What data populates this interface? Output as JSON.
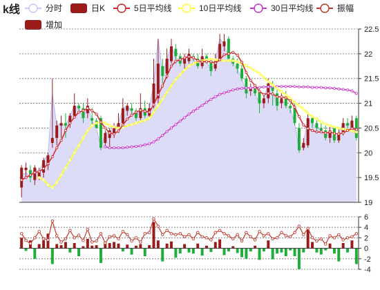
{
  "chart_data": {
    "type": "candlestick",
    "title": "k线",
    "legend": [
      {
        "label": "分时",
        "color": "#c9c9f2",
        "shape": "circle"
      },
      {
        "label": "日K",
        "color": "#9b1b1b",
        "shape": "rect"
      },
      {
        "label": "5日平均线",
        "color": "#d42424",
        "shape": "circle"
      },
      {
        "label": "10日平均线",
        "color": "#ffff33",
        "shape": "circle"
      },
      {
        "label": "30日平均线",
        "color": "#cc33cc",
        "shape": "circle"
      },
      {
        "label": "振幅",
        "color": "#c0392b",
        "shape": "circle"
      },
      {
        "label": "增加",
        "color": "#9b1b1b",
        "shape": "rect"
      }
    ],
    "price_axis": {
      "min": 19,
      "max": 22.5,
      "ticks": [
        "19",
        "19.5",
        "20",
        "20.5",
        "21",
        "21.5",
        "22",
        "22.5"
      ]
    },
    "volume_axis": {
      "min": -4,
      "max": 6,
      "ticks": [
        "-4",
        "-2",
        "0",
        "2",
        "4",
        "6"
      ]
    },
    "colors": {
      "up": "#9b1b1b",
      "down": "#1fae3a",
      "ma5": "#d42424",
      "ma10": "#ffff33",
      "ma30": "#cc33cc",
      "area_fill": "#dcdcf8",
      "area_line": "#b8b8ee",
      "amp": "#c0392b"
    },
    "ohlc": [
      [
        19.3,
        19.7,
        19.1,
        19.75
      ],
      [
        19.65,
        19.7,
        19.5,
        19.8
      ],
      [
        19.65,
        19.5,
        19.4,
        19.75
      ],
      [
        19.45,
        19.7,
        19.35,
        19.75
      ],
      [
        19.5,
        19.6,
        19.45,
        19.7
      ],
      [
        19.6,
        19.85,
        19.5,
        19.9
      ],
      [
        19.75,
        19.95,
        19.65,
        20.0
      ],
      [
        20.2,
        20.3,
        20.1,
        21.5
      ],
      [
        20.3,
        20.55,
        20.15,
        20.65
      ],
      [
        20.55,
        20.6,
        20.3,
        20.75
      ],
      [
        20.6,
        20.55,
        20.3,
        20.8
      ],
      [
        20.6,
        20.75,
        20.5,
        20.8
      ],
      [
        20.75,
        20.95,
        20.7,
        21.2
      ],
      [
        20.95,
        20.9,
        20.85,
        21.0
      ],
      [
        20.9,
        20.7,
        20.6,
        21.0
      ],
      [
        20.8,
        20.95,
        20.7,
        21.1
      ],
      [
        20.7,
        20.65,
        20.55,
        20.9
      ],
      [
        20.65,
        20.5,
        20.5,
        20.7
      ],
      [
        20.7,
        20.1,
        20.05,
        20.75
      ],
      [
        20.2,
        20.4,
        20.15,
        20.45
      ],
      [
        20.3,
        20.45,
        20.1,
        20.5
      ],
      [
        20.4,
        20.5,
        20.3,
        20.6
      ],
      [
        20.5,
        20.6,
        20.4,
        20.8
      ],
      [
        20.6,
        20.9,
        20.5,
        21.1
      ],
      [
        20.85,
        20.95,
        20.75,
        21.0
      ],
      [
        20.9,
        20.85,
        20.75,
        21.0
      ],
      [
        20.85,
        20.7,
        20.65,
        20.9
      ],
      [
        20.7,
        20.9,
        20.6,
        21.2
      ],
      [
        20.9,
        20.75,
        20.7,
        21.05
      ],
      [
        20.75,
        20.9,
        20.7,
        21.0
      ],
      [
        21.0,
        21.4,
        20.9,
        21.9
      ],
      [
        21.1,
        21.8,
        21.0,
        22.3
      ],
      [
        21.75,
        21.55,
        21.4,
        21.9
      ],
      [
        21.6,
        21.9,
        21.5,
        22.1
      ],
      [
        21.85,
        22.15,
        21.8,
        22.3
      ],
      [
        22.1,
        21.95,
        21.8,
        22.2
      ],
      [
        21.95,
        21.8,
        21.75,
        22.0
      ],
      [
        21.8,
        21.9,
        21.7,
        22.0
      ],
      [
        21.85,
        22.0,
        21.8,
        22.1
      ],
      [
        21.95,
        21.9,
        21.85,
        22.0
      ],
      [
        21.9,
        21.75,
        21.7,
        22.0
      ],
      [
        21.75,
        21.95,
        21.7,
        22.1
      ],
      [
        21.95,
        21.85,
        21.8,
        22.0
      ],
      [
        21.85,
        21.65,
        21.55,
        21.9
      ],
      [
        21.7,
        21.85,
        21.65,
        22.0
      ],
      [
        21.9,
        22.2,
        21.85,
        22.4
      ],
      [
        22.15,
        22.25,
        22.05,
        22.4
      ],
      [
        22.3,
        21.9,
        21.85,
        22.35
      ],
      [
        21.9,
        21.8,
        21.75,
        21.95
      ],
      [
        21.8,
        21.7,
        21.6,
        21.9
      ],
      [
        21.7,
        21.5,
        21.45,
        21.8
      ],
      [
        21.5,
        21.2,
        21.1,
        21.55
      ],
      [
        21.25,
        21.3,
        21.15,
        21.4
      ],
      [
        21.3,
        21.2,
        21.15,
        21.35
      ],
      [
        21.25,
        21.0,
        20.8,
        21.3
      ],
      [
        21.0,
        21.1,
        20.9,
        21.2
      ],
      [
        21.1,
        21.4,
        21.0,
        21.5
      ],
      [
        21.35,
        21.25,
        20.95,
        21.45
      ],
      [
        21.2,
        20.95,
        20.85,
        21.3
      ],
      [
        21.0,
        21.1,
        20.9,
        21.2
      ],
      [
        21.1,
        20.95,
        20.9,
        21.25
      ],
      [
        20.95,
        20.9,
        20.8,
        21.0
      ],
      [
        20.9,
        20.6,
        20.55,
        21.0
      ],
      [
        20.5,
        20.05,
        20.0,
        20.6
      ],
      [
        20.1,
        20.2,
        20.05,
        20.3
      ],
      [
        20.15,
        20.7,
        20.1,
        20.8
      ],
      [
        20.7,
        20.6,
        20.5,
        20.75
      ],
      [
        20.6,
        20.5,
        20.45,
        20.7
      ],
      [
        20.5,
        20.45,
        20.4,
        20.6
      ],
      [
        20.45,
        20.3,
        20.25,
        20.55
      ],
      [
        20.3,
        20.45,
        20.2,
        20.55
      ],
      [
        20.5,
        20.25,
        20.2,
        20.55
      ],
      [
        20.25,
        20.4,
        20.2,
        20.5
      ],
      [
        20.4,
        20.6,
        20.35,
        20.7
      ],
      [
        20.6,
        20.55,
        20.45,
        20.7
      ],
      [
        20.5,
        20.65,
        20.45,
        20.75
      ],
      [
        20.7,
        20.3,
        20.25,
        20.75
      ]
    ],
    "ma5": [
      19.45,
      19.5,
      19.55,
      19.6,
      19.62,
      19.68,
      19.78,
      19.92,
      20.1,
      20.25,
      20.45,
      20.6,
      20.72,
      20.82,
      20.85,
      20.9,
      20.85,
      20.78,
      20.62,
      20.5,
      20.4,
      20.38,
      20.44,
      20.56,
      20.68,
      20.76,
      20.82,
      20.86,
      20.84,
      20.82,
      20.97,
      21.17,
      21.35,
      21.55,
      21.75,
      21.85,
      21.88,
      21.92,
      21.94,
      21.92,
      21.86,
      21.84,
      21.84,
      21.84,
      21.81,
      21.88,
      21.98,
      22.0,
      22.03,
      21.97,
      21.83,
      21.62,
      21.46,
      21.36,
      21.24,
      21.18,
      21.2,
      21.19,
      21.13,
      21.13,
      21.11,
      21.05,
      20.92,
      20.73,
      20.56,
      20.49,
      20.45,
      20.42,
      20.42,
      20.4,
      20.42,
      20.39,
      20.38,
      20.4,
      20.45,
      20.49,
      20.47
    ],
    "ma10": [
      null,
      null,
      null,
      null,
      19.5,
      19.45,
      19.35,
      19.3,
      19.4,
      19.55,
      19.7,
      19.85,
      20.0,
      20.15,
      20.3,
      20.45,
      20.55,
      20.6,
      20.62,
      20.6,
      20.55,
      20.52,
      20.5,
      20.52,
      20.55,
      20.57,
      20.6,
      20.63,
      20.65,
      20.7,
      20.82,
      20.95,
      21.08,
      21.22,
      21.35,
      21.48,
      21.58,
      21.67,
      21.75,
      21.8,
      21.84,
      21.86,
      21.88,
      21.89,
      21.88,
      21.87,
      21.86,
      21.86,
      21.86,
      21.84,
      21.8,
      21.76,
      21.71,
      21.66,
      21.6,
      21.52,
      21.44,
      21.37,
      21.3,
      21.24,
      21.17,
      21.1,
      21.02,
      20.95,
      20.88,
      20.8,
      20.73,
      20.68,
      20.62,
      20.58,
      20.55,
      20.52,
      20.5,
      20.48,
      20.46,
      20.44,
      20.42
    ],
    "ma30": [
      null,
      null,
      null,
      null,
      null,
      null,
      null,
      null,
      null,
      null,
      null,
      null,
      null,
      null,
      null,
      null,
      null,
      null,
      null,
      20.12,
      20.1,
      20.1,
      20.1,
      20.1,
      20.11,
      20.12,
      20.13,
      20.14,
      20.16,
      20.18,
      20.22,
      20.28,
      20.35,
      20.43,
      20.5,
      20.57,
      20.64,
      20.71,
      20.78,
      20.84,
      20.9,
      20.96,
      21.02,
      21.08,
      21.13,
      21.18,
      21.21,
      21.24,
      21.27,
      21.29,
      21.3,
      21.31,
      21.31,
      21.32,
      21.32,
      21.33,
      21.33,
      21.34,
      21.34,
      21.34,
      21.34,
      21.34,
      21.34,
      21.33,
      21.33,
      21.33,
      21.32,
      21.32,
      21.32,
      21.31,
      21.31,
      21.3,
      21.29,
      21.28,
      21.27,
      21.25,
      21.2
    ],
    "area_close": [
      19.55,
      19.6,
      19.5,
      19.7,
      19.6,
      19.85,
      19.95,
      21.2,
      20.55,
      20.6,
      20.55,
      20.75,
      20.95,
      20.9,
      20.7,
      20.95,
      20.65,
      20.5,
      20.1,
      20.4,
      20.45,
      20.5,
      20.6,
      20.9,
      20.95,
      20.85,
      20.7,
      20.9,
      20.75,
      20.9,
      21.4,
      22.3,
      21.6,
      21.9,
      22.15,
      21.95,
      21.8,
      21.9,
      22.0,
      21.9,
      21.75,
      21.95,
      21.85,
      21.65,
      21.85,
      22.3,
      22.2,
      21.9,
      21.8,
      21.7,
      21.5,
      21.2,
      21.3,
      21.2,
      21.0,
      21.1,
      21.4,
      21.25,
      20.95,
      21.1,
      20.95,
      20.9,
      20.6,
      20.05,
      20.2,
      20.7,
      20.6,
      20.5,
      20.45,
      20.3,
      20.45,
      20.25,
      20.4,
      20.6,
      20.55,
      20.65,
      20.3
    ],
    "volume": [
      2.0,
      -0.5,
      1.5,
      -2.0,
      0.8,
      1.5,
      2.8,
      -3.0,
      0.8,
      0.6,
      1.2,
      -0.8,
      1.0,
      -1.5,
      0.4,
      1.8,
      0.5,
      0.6,
      -2.8,
      1.2,
      1.0,
      1.2,
      0.9,
      -0.6,
      0.7,
      -1.2,
      0.5,
      0.8,
      -1.5,
      0.6,
      5.0,
      1.5,
      -2.5,
      0.9,
      1.3,
      -1.8,
      -1.0,
      0.8,
      -0.8,
      -1.0,
      0.9,
      -1.4,
      0.5,
      -0.7,
      1.2,
      1.7,
      -1.3,
      -0.6,
      0.4,
      -0.9,
      -1.7,
      -2.0,
      -0.6,
      0.5,
      -2.2,
      -0.6,
      1.5,
      -2.1,
      -1.0,
      -0.8,
      -1.5,
      -0.4,
      -1.5,
      -4.0,
      -0.8,
      3.5,
      1.2,
      -0.8,
      -1.2,
      -0.4,
      0.9,
      -1.0,
      -2.5,
      1.0,
      -0.8,
      1.5,
      -3.0
    ],
    "amplitude": [
      2.8,
      1.5,
      0.9,
      2.0,
      3.2,
      1.8,
      1.6,
      5.2,
      2.4,
      1.2,
      1.8,
      3.4,
      2.0,
      2.5,
      1.5,
      3.6,
      1.2,
      1.4,
      2.8,
      1.0,
      2.2,
      2.4,
      1.8,
      3.2,
      2.6,
      1.4,
      2.0,
      1.2,
      2.8,
      3.0,
      5.6,
      4.2,
      2.6,
      3.4,
      2.8,
      2.6,
      2.8,
      2.2,
      2.6,
      1.8,
      3.0,
      2.2,
      2.0,
      1.6,
      3.0,
      3.4,
      2.8,
      2.4,
      1.8,
      2.6,
      1.4,
      3.0,
      2.2,
      1.6,
      3.2,
      2.4,
      2.8,
      1.8,
      2.0,
      3.0,
      2.4,
      2.2,
      3.0,
      4.2,
      2.6,
      3.8,
      2.0,
      1.4,
      1.8,
      0.8,
      2.4,
      2.0,
      2.6,
      1.6,
      2.0,
      2.2,
      2.8
    ]
  }
}
